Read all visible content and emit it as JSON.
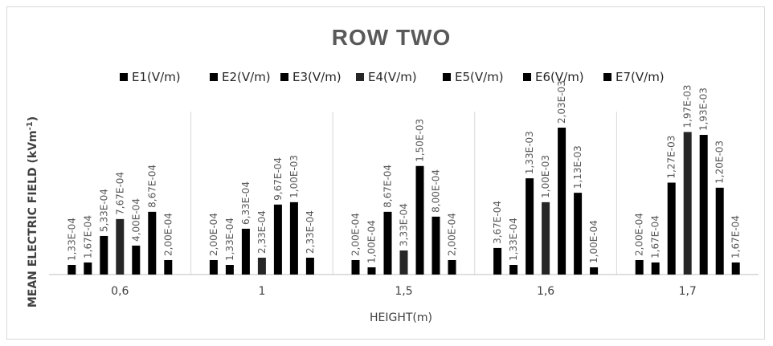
{
  "chart_data": {
    "type": "bar",
    "title": "ROW TWO",
    "xlabel": "HEIGHT(m)",
    "ylabel": "MEAN ELECTRIC FIELD (kVm",
    "ylabel_sup": "-1",
    "ylabel_suffix": ")",
    "categories": [
      "0,6",
      "1",
      "1,5",
      "1,6",
      "1,7"
    ],
    "legend_position": "top",
    "grid": false,
    "ylim": [
      0,
      0.0021
    ],
    "series": [
      {
        "name": "E1(V/m)",
        "color": "#000000",
        "values": [
          0.000133,
          0.0002,
          0.0002,
          0.000367,
          0.0002
        ],
        "labels": [
          "1,33E-04",
          "2,00E-04",
          "2,00E-04",
          "3,67E-04",
          "2,00E-04"
        ]
      },
      {
        "name": "E2(V/m)",
        "color": "#000000",
        "values": [
          0.000167,
          0.000133,
          0.0001,
          0.000133,
          0.000167
        ],
        "labels": [
          "1,67E-04",
          "1,33E-04",
          "1,00E-04",
          "1,33E-04",
          "1,67E-04"
        ]
      },
      {
        "name": "E3(V/m)",
        "color": "#000000",
        "values": [
          0.000533,
          0.000633,
          0.000867,
          0.00133,
          0.00127
        ],
        "labels": [
          "5,33E-04",
          "6,33E-04",
          "8,67E-04",
          "1,33E-03",
          "1,27E-03"
        ]
      },
      {
        "name": "E4(V/m)",
        "color": "#262626",
        "values": [
          0.000767,
          0.000233,
          0.000333,
          0.001,
          0.00197
        ],
        "labels": [
          "7,67E-04",
          "2,33E-04",
          "3,33E-04",
          "1,00E-03",
          "1,97E-03"
        ]
      },
      {
        "name": "E5(V/m)",
        "color": "#000000",
        "values": [
          0.0004,
          0.000967,
          0.0015,
          0.00203,
          0.00193
        ],
        "labels": [
          "4,00E-04",
          "9,67E-04",
          "1,50E-03",
          "2,03E-03",
          "1,93E-03"
        ]
      },
      {
        "name": "E6(V/m)",
        "color": "#000000",
        "values": [
          0.000867,
          0.001,
          0.0008,
          0.00113,
          0.0012
        ],
        "labels": [
          "8,67E-04",
          "1,00E-03",
          "8,00E-04",
          "1,13E-03",
          "1,20E-03"
        ]
      },
      {
        "name": "E7(V/m)",
        "color": "#000000",
        "values": [
          0.0002,
          0.000233,
          0.0002,
          0.0001,
          0.000167
        ],
        "labels": [
          "2,00E-04",
          "2,33E-04",
          "2,00E-04",
          "1,00E-04",
          "1,67E-04"
        ]
      }
    ]
  }
}
